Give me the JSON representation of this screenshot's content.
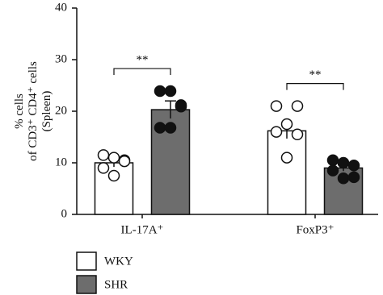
{
  "chart_data": {
    "type": "bar",
    "y_label": [
      "% cells",
      "of CD3⁺ CD4⁺ cells",
      "(Spleen)"
    ],
    "categories": [
      "IL-17A⁺",
      "FoxP3⁺"
    ],
    "series": [
      {
        "name": "WKY",
        "color": "#ffffff",
        "marker_color": "#ffffff",
        "values": [
          10,
          16.2
        ],
        "errors": [
          0.8,
          1.5
        ],
        "points": [
          [
            11.5,
            10.5,
            11,
            9,
            10.3,
            7.5
          ],
          [
            21,
            21,
            17.5,
            16,
            15.5,
            11
          ]
        ]
      },
      {
        "name": "SHR",
        "color": "#6d6d6d",
        "marker_color": "#111111",
        "values": [
          20.3,
          9
        ],
        "errors": [
          1.7,
          0.6
        ],
        "points": [
          [
            23.9,
            21.2,
            23.9,
            16.8,
            20.9,
            16.8
          ],
          [
            10.5,
            9.5,
            10,
            8.5,
            7.2,
            7
          ]
        ]
      }
    ],
    "annotations": [
      "**",
      "**"
    ],
    "ylim": [
      0,
      40
    ],
    "yticks": [
      0,
      10,
      20,
      30,
      40
    ]
  }
}
